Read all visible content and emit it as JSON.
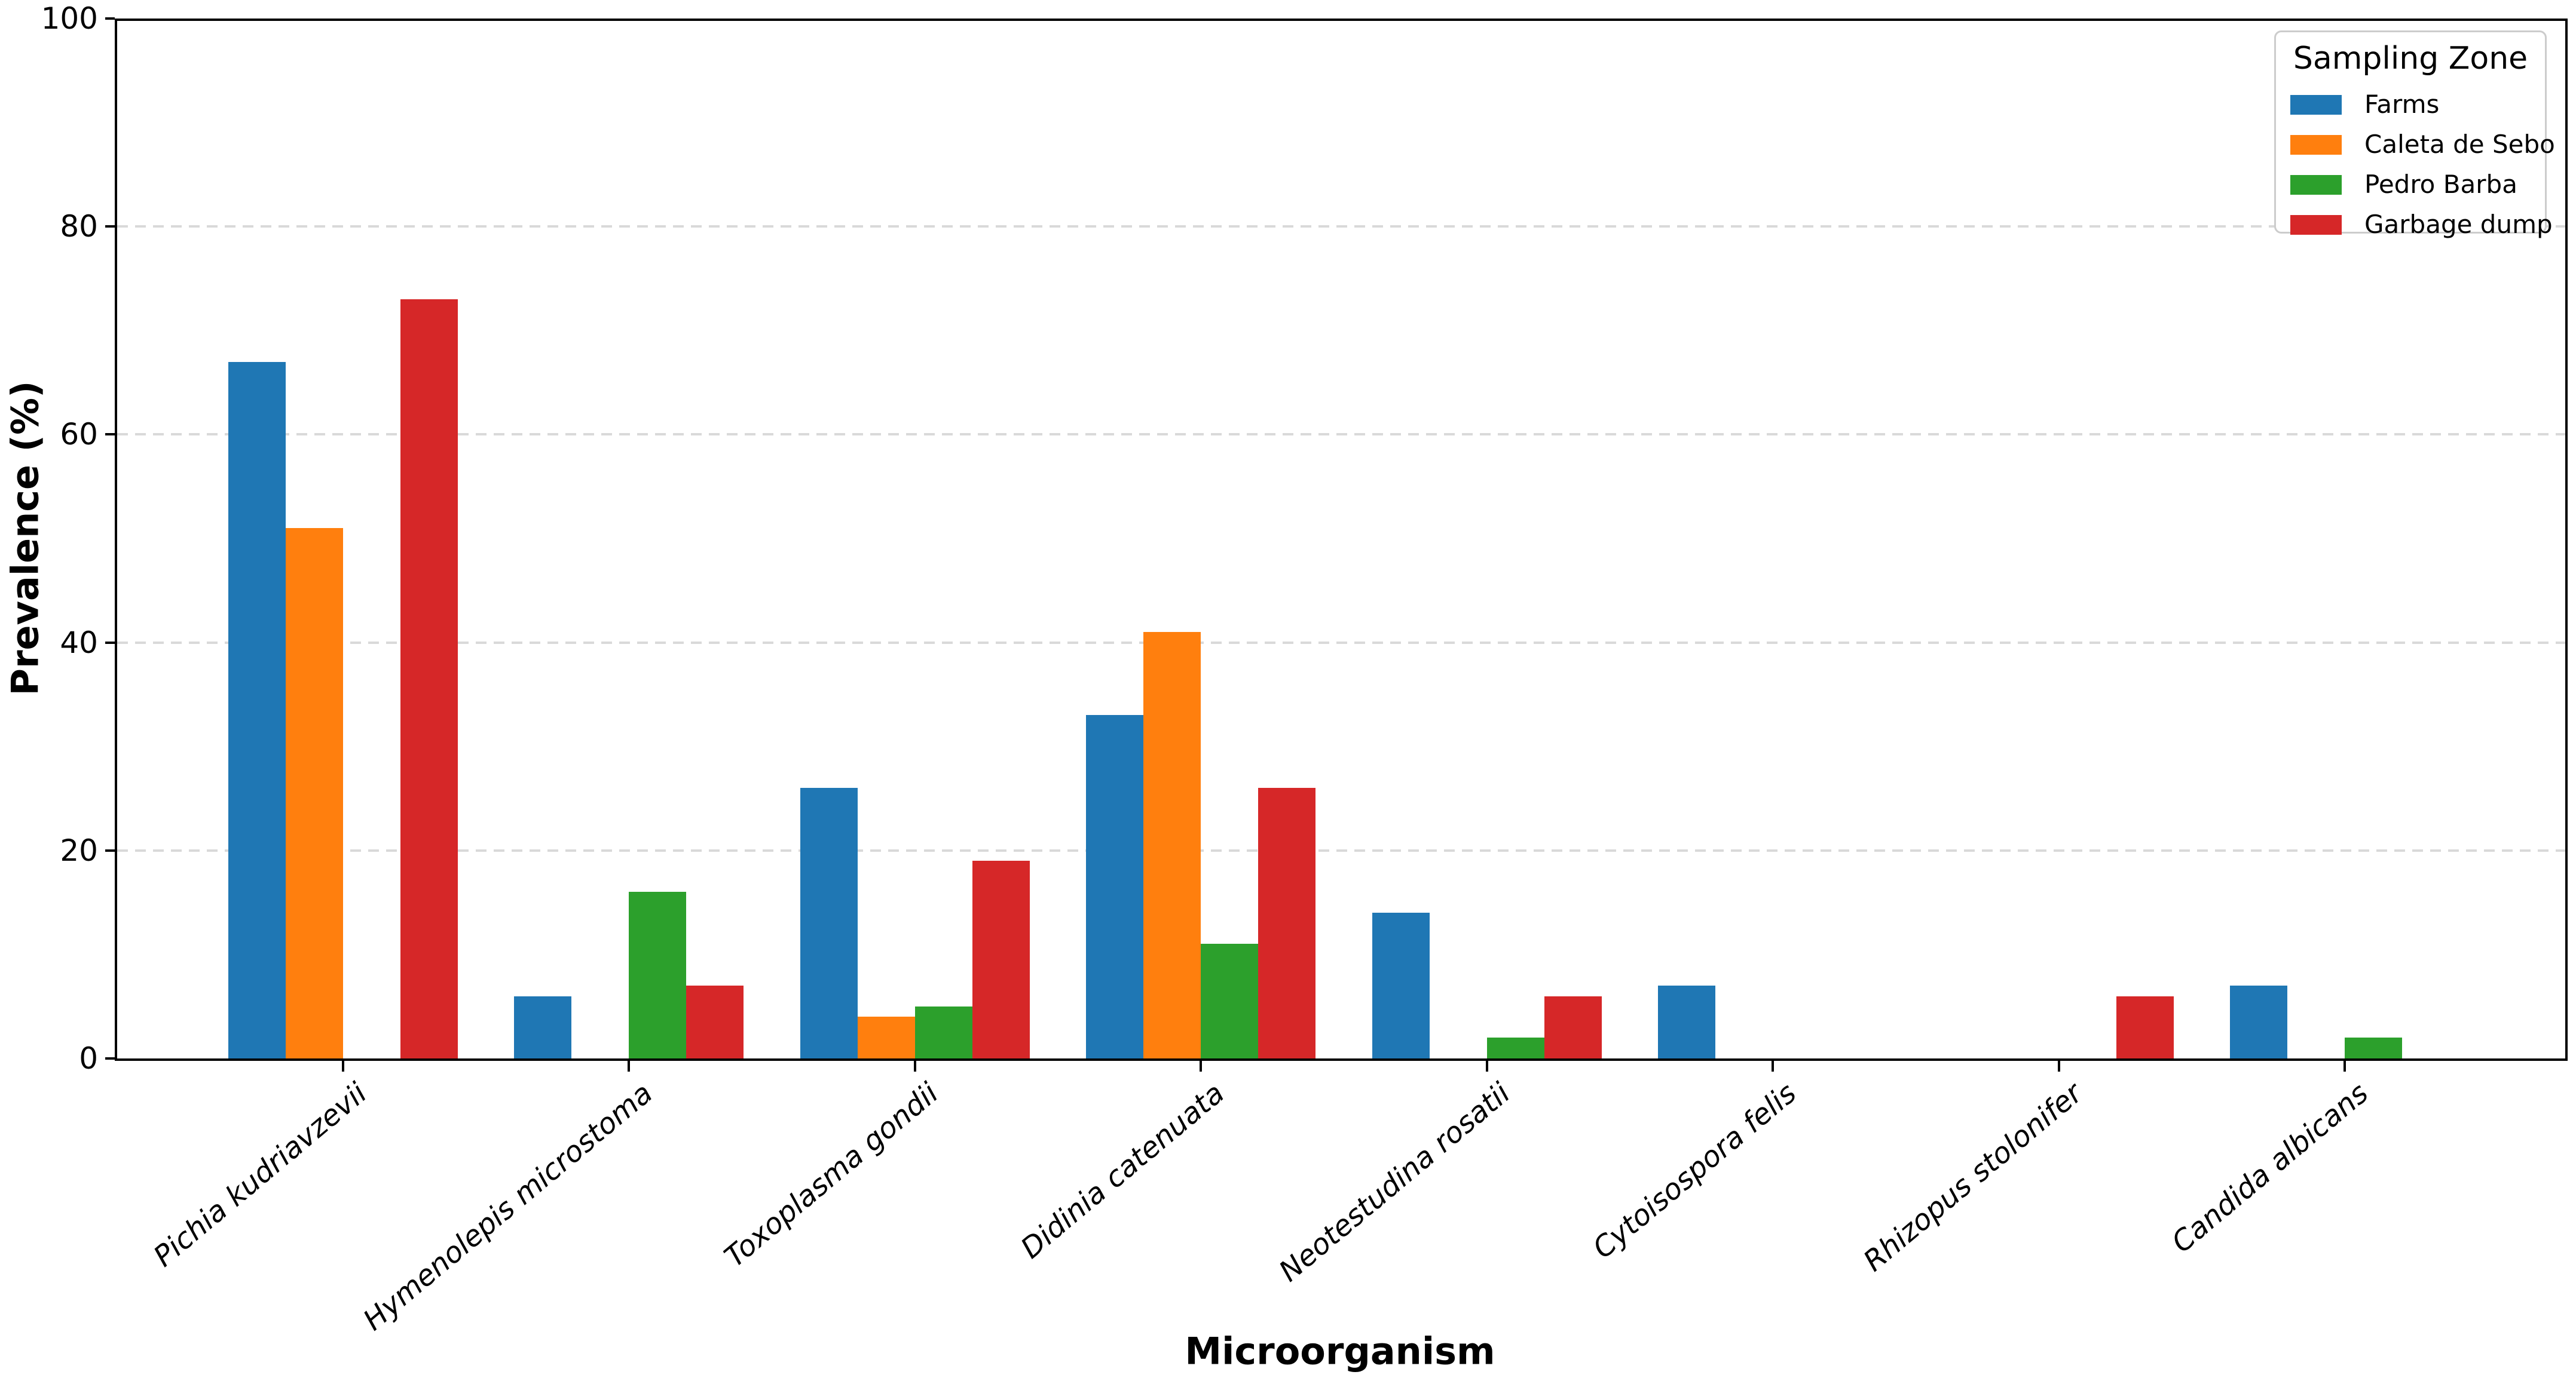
{
  "figure": {
    "background": "#ffffff",
    "spine_color": "#000000",
    "grid_color": "#d9d9d9"
  },
  "chart_data": {
    "type": "bar",
    "title": "",
    "xlabel": "Microorganism",
    "ylabel": "Prevalence (%)",
    "ylim": [
      0,
      100
    ],
    "yticks": [
      0,
      20,
      40,
      60,
      80,
      100
    ],
    "grid": "horizontal dashed gridlines at y-ticks",
    "legend_title": "Sampling Zone",
    "legend_position": "upper-right",
    "categories": [
      "Pichia kudriavzevii",
      "Hymenolepis microstoma",
      "Toxoplasma gondii",
      "Didinia catenuata",
      "Neotestudina rosatii",
      "Cytoisospora felis",
      "Rhizopus stolonifer",
      "Candida albicans"
    ],
    "series": [
      {
        "name": "Farms",
        "color": "#1f77b4",
        "values": [
          67,
          6,
          26,
          33,
          14,
          7,
          0,
          7
        ]
      },
      {
        "name": "Caleta de Sebo",
        "color": "#ff7f0e",
        "values": [
          51,
          0,
          4,
          41,
          0,
          0,
          0,
          0
        ]
      },
      {
        "name": "Pedro Barba",
        "color": "#2ca02c",
        "values": [
          0,
          16,
          5,
          11,
          2,
          0,
          0,
          2
        ]
      },
      {
        "name": "Garbage dump",
        "color": "#d62728",
        "values": [
          73,
          7,
          19,
          26,
          6,
          0,
          6,
          0
        ]
      }
    ]
  }
}
